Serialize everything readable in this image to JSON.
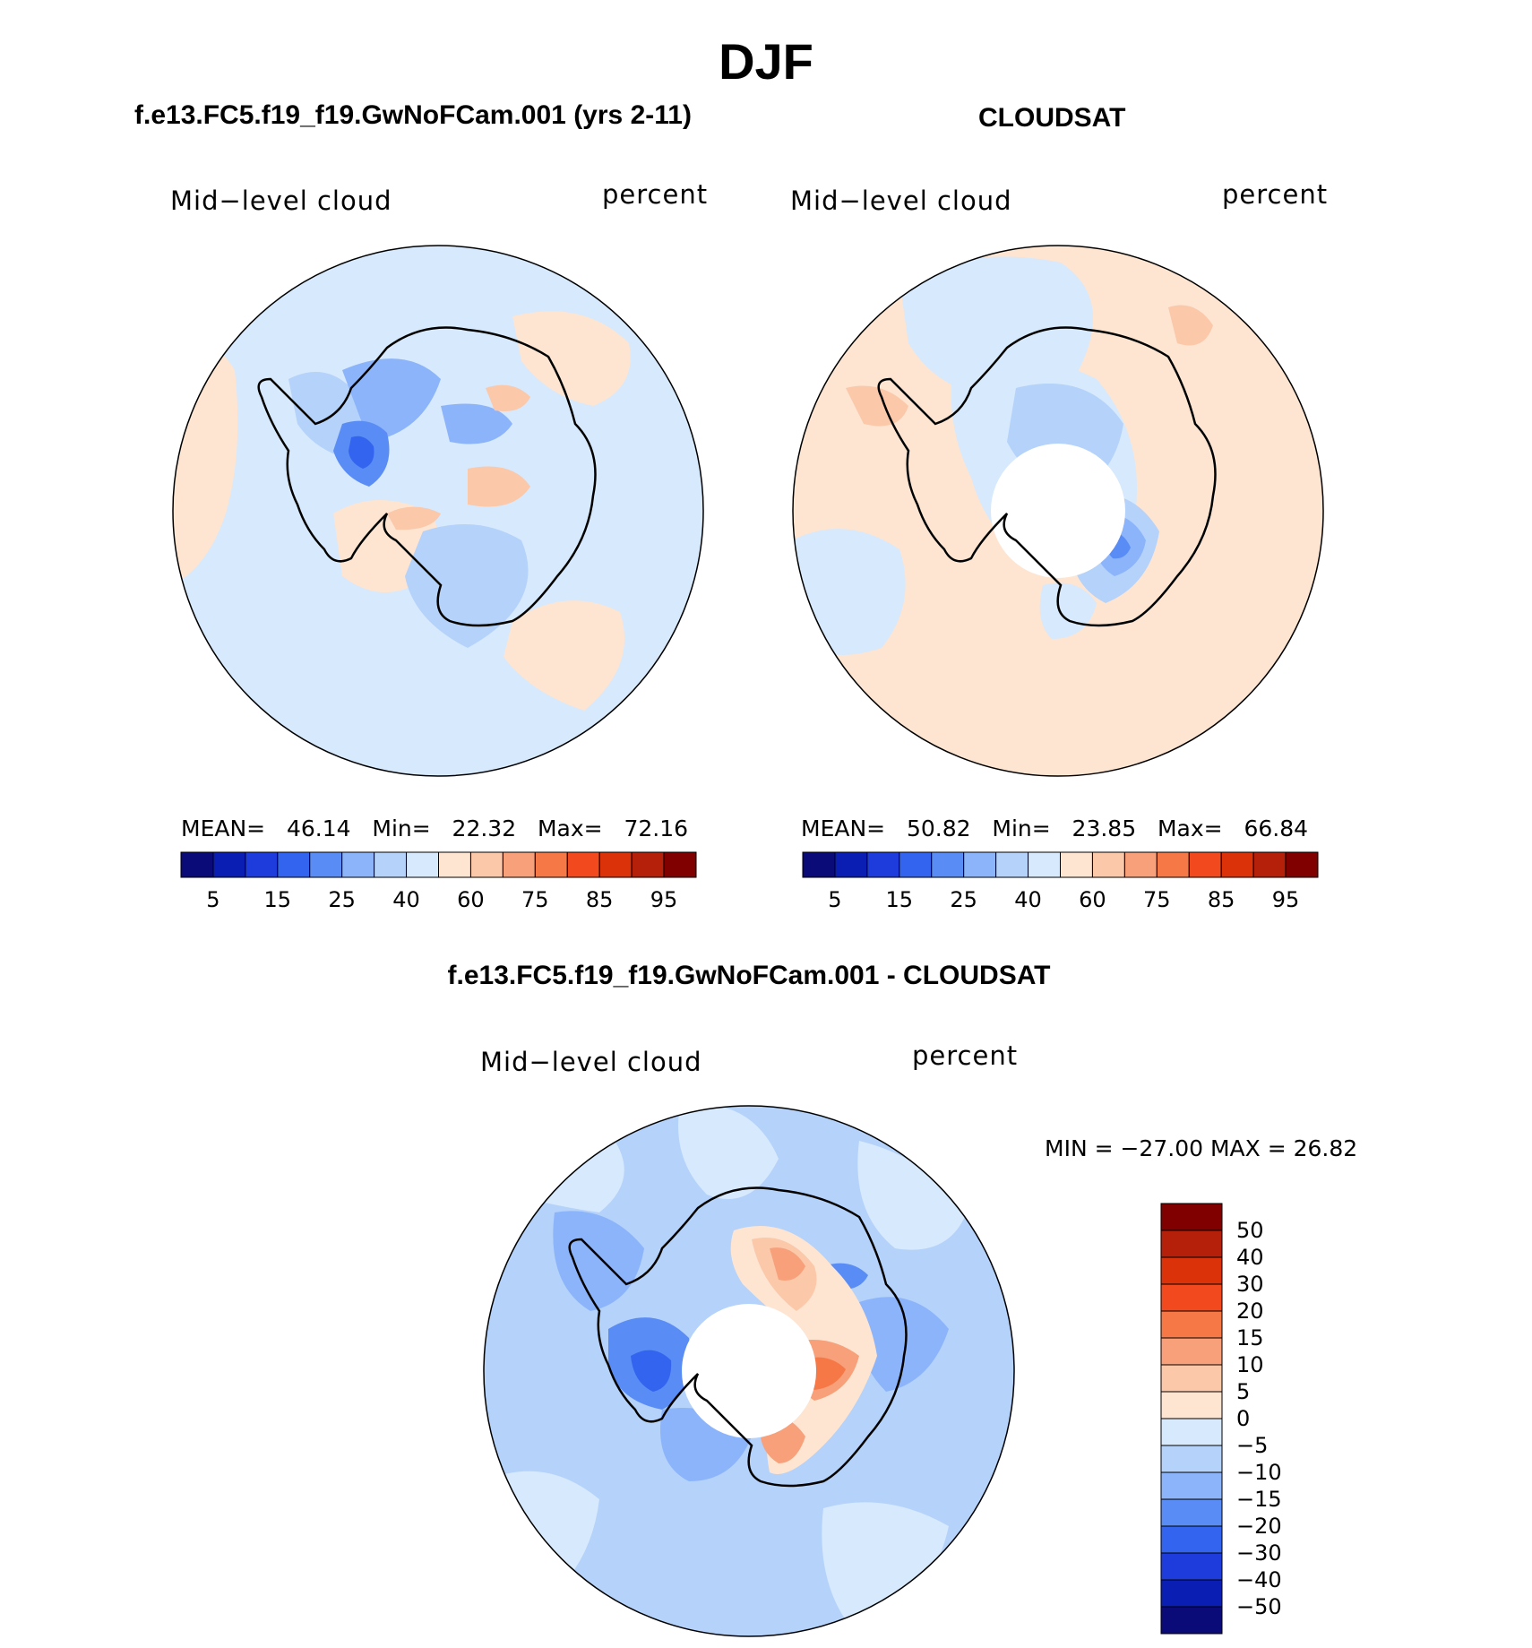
{
  "figure": {
    "title": "DJF"
  },
  "panels": [
    {
      "id": "model",
      "title": "f.e13.FC5.f19_f19.GwNoFCam.001 (yrs 2-11)",
      "variable": "Mid−level cloud",
      "units": "percent",
      "stats": {
        "mean_label": "MEAN=",
        "mean": "46.14",
        "min_label": "Min=",
        "min": "22.32",
        "max_label": "Max=",
        "max": "72.16"
      },
      "colorbar_ticks": [
        "5",
        "15",
        "25",
        "40",
        "60",
        "75",
        "85",
        "95"
      ],
      "has_pole_hole": false
    },
    {
      "id": "obs",
      "title": "CLOUDSAT",
      "variable": "Mid−level cloud",
      "units": "percent",
      "stats": {
        "mean_label": "MEAN=",
        "mean": "50.82",
        "min_label": "Min=",
        "min": "23.85",
        "max_label": "Max=",
        "max": "66.84"
      },
      "colorbar_ticks": [
        "5",
        "15",
        "25",
        "40",
        "60",
        "75",
        "85",
        "95"
      ],
      "has_pole_hole": true
    }
  ],
  "difference": {
    "title": "f.e13.FC5.f19_f19.GwNoFCam.001 - CLOUDSAT",
    "variable": "Mid−level cloud",
    "units": "percent",
    "minmax_text": "MIN = −27.00 MAX =   26.82",
    "colorbar_ticks": [
      "50",
      "40",
      "30",
      "20",
      "15",
      "10",
      "5",
      "0",
      "−5",
      "−10",
      "−15",
      "−20",
      "−30",
      "−40",
      "−50"
    ]
  },
  "colors": {
    "abs_scale": [
      "#0a0a78",
      "#0a1eb4",
      "#1e3cdc",
      "#3264f0",
      "#5a8cf5",
      "#8cb4fa",
      "#b4d2fa",
      "#d7e9fc",
      "#fde5d2",
      "#fbc8aa",
      "#f7a07a",
      "#f57846",
      "#f24a1e",
      "#dc320a",
      "#b4200a",
      "#800000"
    ],
    "diff_scale": [
      "#0a0a78",
      "#0a1eb4",
      "#1e3cdc",
      "#3264f0",
      "#5a8cf5",
      "#8cb4fa",
      "#b4d2fa",
      "#d7e9fc",
      "#fde5d2",
      "#fbc8aa",
      "#f7a07a",
      "#f57846",
      "#f24a1e",
      "#dc320a",
      "#b4200a",
      "#800000"
    ]
  }
}
